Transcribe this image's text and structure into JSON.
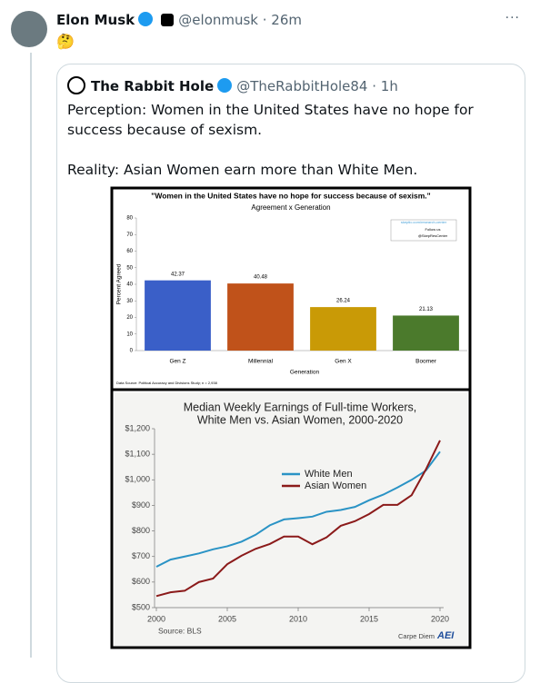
{
  "tweet": {
    "name": "Elon Musk",
    "meta": "@elonmusk · 26m",
    "text": "🤔"
  },
  "quote": {
    "name": "The Rabbit Hole",
    "meta": "@TheRabbitHole84 · 1h",
    "paragraphs": [
      "Perception: Women in the United States have no hope for success because of sexism.",
      "Reality: Asian Women earn more than White Men."
    ]
  },
  "chart_data": [
    {
      "type": "bar",
      "title": "\"Women in the United States have no hope for success because of sexism.\"",
      "subtitle": "Agreement x Generation",
      "ylabel": "Percent Agreed",
      "xlabel": "Generation",
      "categories": [
        "Gen Z",
        "Millennial",
        "Gen X",
        "Boomer"
      ],
      "values": [
        42.37,
        40.48,
        26.24,
        21.13
      ],
      "colors": [
        "#3a5fc8",
        "#c0521a",
        "#c99a06",
        "#4b7a2c"
      ],
      "ylim": [
        0,
        80
      ],
      "yticks": [
        0,
        10,
        20,
        30,
        40,
        50,
        60,
        70,
        80
      ],
      "source": "Data Source: Political Accuracy and Divisions Study; n = 2,938",
      "annotations": [
        "skeptic.com/research-center",
        "Follow us",
        "@SkepResCenter"
      ]
    },
    {
      "type": "line",
      "title": [
        "Median Weekly Earnings of Full-time Workers,",
        "White Men vs. Asian Women, 2000-2020"
      ],
      "x": [
        2000,
        2001,
        2002,
        2003,
        2004,
        2005,
        2006,
        2007,
        2008,
        2009,
        2010,
        2011,
        2012,
        2013,
        2014,
        2015,
        2016,
        2017,
        2018,
        2019,
        2020
      ],
      "series": [
        {
          "name": "White Men",
          "color": "#2a93c5",
          "values": [
            660,
            688,
            700,
            712,
            728,
            740,
            758,
            785,
            822,
            845,
            850,
            856,
            875,
            882,
            894,
            920,
            942,
            970,
            1000,
            1036,
            1110
          ]
        },
        {
          "name": "Asian Women",
          "color": "#8b1a1a",
          "values": [
            545,
            560,
            566,
            600,
            614,
            670,
            703,
            730,
            749,
            778,
            778,
            748,
            775,
            820,
            838,
            866,
            902,
            902,
            940,
            1040,
            1154
          ]
        }
      ],
      "xlim": [
        2000,
        2020
      ],
      "xticks": [
        2000,
        2005,
        2010,
        2015,
        2020
      ],
      "ylim": [
        500,
        1200
      ],
      "yticks": [
        {
          "value": 500,
          "label": "$500"
        },
        {
          "value": 600,
          "label": "$600"
        },
        {
          "value": 700,
          "label": "$700"
        },
        {
          "value": 800,
          "label": "$800"
        },
        {
          "value": 900,
          "label": "$900"
        },
        {
          "value": 1000,
          "label": "$1,000"
        },
        {
          "value": 1100,
          "label": "$1,100"
        },
        {
          "value": 1200,
          "label": "$1,200"
        }
      ],
      "source": "Source: BLS",
      "annotations": [
        "Carpe Diem",
        "AEI"
      ]
    }
  ]
}
